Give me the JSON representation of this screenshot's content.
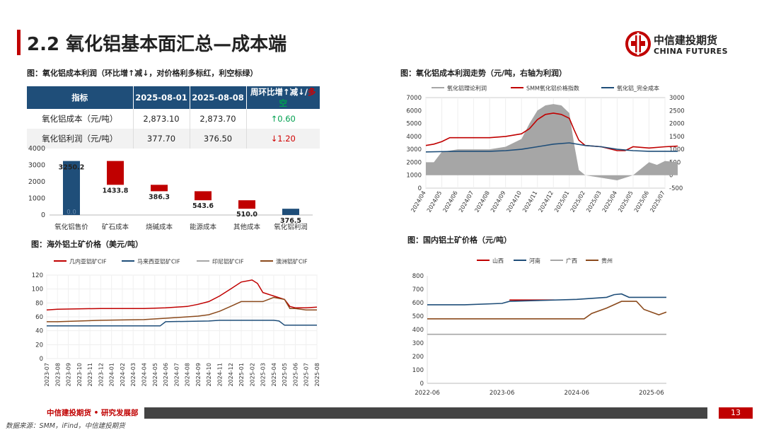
{
  "header": {
    "title": "2.2 氧化铝基本面汇总—成本端",
    "brand_cn": "中信建投期货",
    "brand_en": "CHINA FUTURES",
    "logo_icon": "citic-logo-icon",
    "accent_color": "#c00000"
  },
  "captions": {
    "table": "图：氧化铝成本利润（环比增↑减↓，对价格利多标红，利空标绿）",
    "profit_trend": "图：氧化铝成本利润走势（元/吨，右轴为利润）",
    "overseas": "图：海外铝土矿价格（美元/吨）",
    "domestic": "图：国内铝土矿价格（元/吨）"
  },
  "summary_table": {
    "headers": [
      "指标",
      "2025-08-01",
      "2025-08-08",
      "周环比增↑减↓/多空"
    ],
    "header_last_parts": [
      "周环比增↑减↓/",
      "多",
      "空"
    ],
    "rows": [
      {
        "name": "氧化铝成本（元/吨）",
        "v1": "2,873.10",
        "v2": "2,873.70",
        "change": "↑0.60",
        "dir": "up"
      },
      {
        "name": "氧化铝利润（元/吨）",
        "v1": "377.70",
        "v2": "376.50",
        "change": "↓1.20",
        "dir": "down"
      }
    ]
  },
  "chart_data": [
    {
      "id": "waterfall",
      "type": "bar",
      "categories": [
        "氧化铝售价",
        "矿石成本",
        "烧碱成本",
        "能源成本",
        "其他成本",
        "氧化铝利润"
      ],
      "values": [
        3250.2,
        1433.8,
        386.3,
        543.6,
        510.0,
        376.5
      ],
      "labels": [
        "3250.2",
        "1433.8",
        "386.3",
        "543.6",
        "510.0",
        "376.5"
      ],
      "inner_label": "0.0",
      "colors": [
        "#1f4e79",
        "#c00000",
        "#c00000",
        "#c00000",
        "#c00000",
        "#1f4e79"
      ],
      "ylim": [
        0,
        4000
      ],
      "yticks": [
        0,
        1000,
        2000,
        3000,
        4000
      ]
    },
    {
      "id": "profit_trend",
      "type": "line",
      "legend": [
        "氧化铝理论利润",
        "SMM氧化铝价格指数",
        "氧化铝_完全成本"
      ],
      "x_labels": [
        "2024/04",
        "2024/05",
        "2024/06",
        "2024/07",
        "2024/08",
        "2024/09",
        "2024/10",
        "2024/11",
        "2024/12",
        "2025/01",
        "2025/02",
        "2025/03",
        "2025/04",
        "2025/05",
        "2025/06",
        "2025/07"
      ],
      "left_ylim": [
        0,
        7000
      ],
      "left_ticks": [
        0,
        1000,
        2000,
        3000,
        4000,
        5000,
        6000,
        7000
      ],
      "right_ylim": [
        -500,
        3000
      ],
      "right_ticks": [
        -500,
        0,
        500,
        1000,
        1500,
        2000,
        2500,
        3000
      ],
      "series": [
        {
          "name": "氧化铝理论利润",
          "axis": "right",
          "kind": "area",
          "color": "#a6a6a6",
          "x": [
            0,
            0.5,
            1,
            2,
            3,
            4,
            5,
            6,
            6.5,
            7,
            7.5,
            8,
            8.5,
            9,
            9.3,
            9.6,
            10,
            11,
            12,
            12.5,
            13,
            14,
            14.5,
            15,
            15.8
          ],
          "y": [
            500,
            500,
            900,
            1000,
            1000,
            1000,
            1100,
            1400,
            2000,
            2500,
            2700,
            2750,
            2700,
            2400,
            1200,
            200,
            0,
            -100,
            -200,
            -100,
            0,
            500,
            400,
            550,
            500
          ]
        },
        {
          "name": "SMM氧化铝价格指数",
          "axis": "left",
          "kind": "line",
          "color": "#c00000",
          "x": [
            0,
            0.5,
            1,
            1.5,
            2,
            3,
            4,
            5,
            6,
            6.5,
            7,
            7.5,
            8,
            8.5,
            9,
            9.3,
            9.6,
            10,
            11,
            12,
            12.5,
            13,
            14,
            15,
            15.8
          ],
          "y": [
            3300,
            3400,
            3600,
            3900,
            3900,
            3900,
            3900,
            4000,
            4200,
            4600,
            5300,
            5700,
            5800,
            5700,
            5400,
            4500,
            3700,
            3300,
            3200,
            2900,
            2900,
            3200,
            3100,
            3200,
            3250
          ]
        },
        {
          "name": "氧化铝_完全成本",
          "axis": "left",
          "kind": "line",
          "color": "#1f4e79",
          "x": [
            0,
            2,
            4,
            5,
            6,
            7,
            8,
            9,
            10,
            11,
            12,
            13,
            14,
            15,
            15.8
          ],
          "y": [
            2800,
            2850,
            2850,
            2900,
            3000,
            3200,
            3400,
            3500,
            3300,
            3200,
            3000,
            2900,
            2850,
            2850,
            2850
          ]
        }
      ]
    },
    {
      "id": "overseas_bauxite",
      "type": "line",
      "legend": [
        "几内亚铝矿CIF",
        "马来西亚铝矿CIF",
        "印尼铝矿CIF",
        "澳洲铝矿CIF"
      ],
      "x_labels": [
        "2023-07",
        "2023-08",
        "2023-09",
        "2023-10",
        "2023-11",
        "2023-12",
        "2024-01",
        "2024-02",
        "2024-03",
        "2024-04",
        "2024-05",
        "2024-06",
        "2024-07",
        "2024-08",
        "2024-09",
        "2024-10",
        "2024-11",
        "2024-12",
        "2025-01",
        "2025-02",
        "2025-03",
        "2025-04",
        "2025-05",
        "2025-06",
        "2025-07",
        "2025-08"
      ],
      "ylim": [
        0,
        120
      ],
      "yticks": [
        0,
        20,
        40,
        60,
        80,
        100,
        120
      ],
      "series": [
        {
          "name": "几内亚铝矿CIF",
          "color": "#c00000",
          "x": [
            0,
            1,
            5,
            9,
            11,
            13,
            14,
            15,
            16,
            17,
            18,
            19,
            19.5,
            20,
            21,
            22,
            22.5,
            23,
            24,
            25
          ],
          "y": [
            70,
            71,
            72,
            72,
            73,
            75,
            78,
            82,
            90,
            100,
            110,
            113,
            108,
            95,
            90,
            85,
            75,
            73,
            73,
            74
          ]
        },
        {
          "name": "马来西亚铝矿CIF",
          "color": "#1f4e79",
          "x": [
            0,
            5,
            10.5,
            11,
            15,
            16,
            20,
            21,
            21.5,
            22,
            25
          ],
          "y": [
            47,
            47,
            47,
            53,
            54,
            55,
            55,
            55,
            54,
            48,
            48
          ]
        },
        {
          "name": "印尼铝矿CIF",
          "color": "#a6a6a6",
          "x": [
            0,
            25
          ],
          "y": [
            null,
            null
          ]
        },
        {
          "name": "澳洲铝矿CIF",
          "color": "#8b4a1c",
          "x": [
            0,
            1,
            5,
            9,
            11,
            13,
            14,
            15,
            16,
            17,
            18,
            19,
            20,
            21,
            22,
            22.5,
            23,
            24,
            25
          ],
          "y": [
            53,
            53,
            55,
            56,
            58,
            60,
            61,
            63,
            68,
            75,
            82,
            82,
            82,
            88,
            85,
            72,
            72,
            70,
            70
          ]
        }
      ]
    },
    {
      "id": "domestic_bauxite",
      "type": "line",
      "legend": [
        "山西",
        "河南",
        "广西",
        "贵州"
      ],
      "x_labels": [
        "2022-06",
        "2023-06",
        "2024-06",
        "2025-06"
      ],
      "ylim": [
        0,
        800
      ],
      "yticks": [
        0,
        100,
        200,
        300,
        400,
        500,
        600,
        700,
        800
      ],
      "series": [
        {
          "name": "山西",
          "color": "#c00000",
          "x": [
            0,
            0.5,
            1,
            1.1,
            1.5,
            1.7
          ],
          "y": [
            null,
            null,
            null,
            620,
            620,
            620
          ]
        },
        {
          "name": "河南",
          "color": "#1f4e79",
          "x": [
            0,
            0.5,
            1,
            1.1,
            2,
            2.4,
            2.5,
            2.6,
            2.7,
            2.8,
            3.2
          ],
          "y": [
            585,
            585,
            595,
            610,
            625,
            640,
            660,
            665,
            640,
            640,
            640
          ]
        },
        {
          "name": "广西",
          "color": "#a6a6a6",
          "x": [
            0,
            3.2
          ],
          "y": [
            365,
            365
          ]
        },
        {
          "name": "贵州",
          "color": "#8b4a1c",
          "x": [
            0,
            1,
            2.1,
            2.2,
            2.4,
            2.6,
            2.8,
            2.9,
            3.1,
            3.2
          ],
          "y": [
            480,
            480,
            480,
            520,
            560,
            610,
            610,
            550,
            510,
            530
          ]
        }
      ]
    }
  ],
  "footer": {
    "label": "中信建投期货 • 研究发展部",
    "page": "13",
    "source": "数据来源：SMM，iFind，中信建投期货"
  }
}
